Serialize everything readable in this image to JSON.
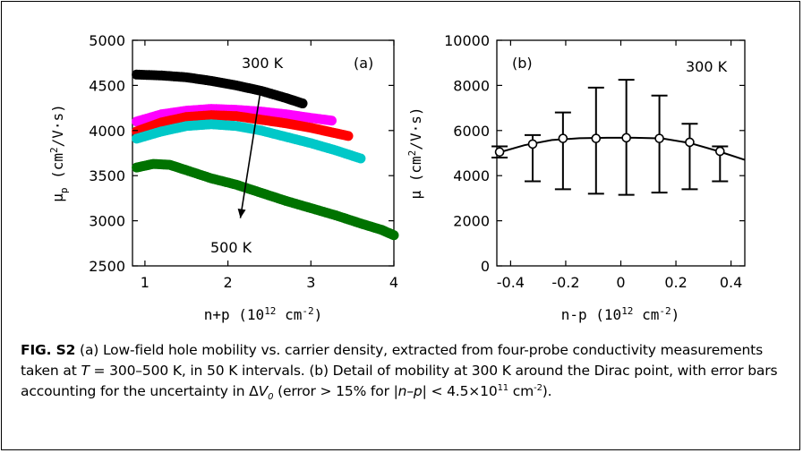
{
  "chart_data": [
    {
      "panel": "(a)",
      "type": "scatter",
      "xlabel": "n+p (10",
      "xlabel_exp": "12",
      "xlabel_unit": " cm",
      "xlabel_unit_exp": "-2",
      "xlabel_close": ")",
      "ylabel_mu": "μ",
      "ylabel_sub": "p",
      "ylabel_unit": " (cm",
      "ylabel_unit_exp": "2",
      "ylabel_tail": "/V·s)",
      "xlim": [
        0.85,
        4.0
      ],
      "ylim": [
        2500,
        5000
      ],
      "xticks": [
        "1",
        "2",
        "3",
        "4"
      ],
      "yticks": [
        "2500",
        "3000",
        "3500",
        "4000",
        "4500",
        "5000"
      ],
      "annotations": {
        "top": "300 K",
        "bottom": "500 K",
        "panel_label": "(a)"
      },
      "series": [
        {
          "temperature_K": 300,
          "color": "#000000",
          "x": [
            0.9,
            1.2,
            1.5,
            1.8,
            2.1,
            2.4,
            2.7,
            2.9
          ],
          "y": [
            4620,
            4610,
            4590,
            4550,
            4500,
            4440,
            4360,
            4300
          ]
        },
        {
          "temperature_K": 350,
          "color": "#ff00ff",
          "x": [
            0.9,
            1.2,
            1.5,
            1.8,
            2.1,
            2.4,
            2.7,
            3.0,
            3.25
          ],
          "y": [
            4100,
            4180,
            4220,
            4240,
            4230,
            4210,
            4180,
            4140,
            4110
          ]
        },
        {
          "temperature_K": 400,
          "color": "#ff0000",
          "x": [
            0.9,
            1.2,
            1.5,
            1.8,
            2.1,
            2.4,
            2.7,
            3.0,
            3.25,
            3.45
          ],
          "y": [
            3990,
            4090,
            4150,
            4170,
            4160,
            4120,
            4080,
            4030,
            3980,
            3940
          ]
        },
        {
          "temperature_K": 450,
          "color": "#00c8c8",
          "x": [
            0.9,
            1.2,
            1.5,
            1.8,
            2.1,
            2.4,
            2.7,
            3.0,
            3.3,
            3.6
          ],
          "y": [
            3910,
            3990,
            4050,
            4070,
            4050,
            4000,
            3930,
            3860,
            3780,
            3690
          ]
        },
        {
          "temperature_K": 500,
          "color": "#007300",
          "x": [
            0.9,
            1.1,
            1.3,
            1.5,
            1.8,
            2.1,
            2.4,
            2.7,
            3.0,
            3.3,
            3.6,
            3.85,
            4.0
          ],
          "y": [
            3590,
            3630,
            3620,
            3560,
            3470,
            3400,
            3310,
            3220,
            3140,
            3060,
            2970,
            2900,
            2840
          ]
        }
      ],
      "arrow": {
        "from": [
          2.4,
          4480
        ],
        "to": [
          2.15,
          3030
        ]
      }
    },
    {
      "panel": "(b)",
      "type": "scatter",
      "xlabel": "n-p (10",
      "xlabel_exp": "12",
      "xlabel_unit": " cm",
      "xlabel_unit_exp": "-2",
      "xlabel_close": ")",
      "ylabel_mu": "μ",
      "ylabel_unit": " (cm",
      "ylabel_unit_exp": "2",
      "ylabel_tail": "/V·s)",
      "xlim": [
        -0.45,
        0.45
      ],
      "ylim": [
        0,
        10000
      ],
      "xticks": [
        "-0.4",
        "-0.2",
        "0",
        "0.2",
        "0.4"
      ],
      "yticks": [
        "0",
        "2000",
        "4000",
        "6000",
        "8000",
        "10000"
      ],
      "annotations": {
        "panel_label": "(b)",
        "temperature": "300 K"
      },
      "points": [
        {
          "x": -0.44,
          "y": 5050,
          "err_lo": 4800,
          "err_hi": 5300
        },
        {
          "x": -0.32,
          "y": 5400,
          "err_lo": 3750,
          "err_hi": 5800
        },
        {
          "x": -0.21,
          "y": 5650,
          "err_lo": 3400,
          "err_hi": 6800
        },
        {
          "x": -0.09,
          "y": 5650,
          "err_lo": 3200,
          "err_hi": 7900
        },
        {
          "x": 0.02,
          "y": 5680,
          "err_lo": 3150,
          "err_hi": 8250
        },
        {
          "x": 0.14,
          "y": 5650,
          "err_lo": 3250,
          "err_hi": 7550
        },
        {
          "x": 0.25,
          "y": 5480,
          "err_lo": 3400,
          "err_hi": 6300
        },
        {
          "x": 0.36,
          "y": 5080,
          "err_lo": 3750,
          "err_hi": 5300
        }
      ],
      "fit_curve": {
        "x": [
          -0.45,
          -0.35,
          -0.25,
          -0.15,
          -0.05,
          0.05,
          0.15,
          0.25,
          0.35,
          0.45
        ],
        "y": [
          5000,
          5350,
          5580,
          5660,
          5680,
          5680,
          5650,
          5450,
          5100,
          4700
        ]
      }
    }
  ],
  "caption": {
    "lead": "FIG. S2",
    "part_a": " (a) Low-field hole mobility vs. carrier density, extracted from four-probe conductivity measurements taken at ",
    "t_symbol": "T",
    "part_b": " = 300–500 K, in 50 K intervals. (b) Detail of mobility at 300 K around the Dirac point, with error bars accounting for the uncertainty in Δ",
    "v_symbol": "V",
    "v_sub": "0",
    "part_c": " (error > 15% for |",
    "np_symbol": "n–p",
    "part_d": "| < 4.5×10",
    "exp": "11",
    "part_e": " cm",
    "exp2": "-2",
    "part_f": ")."
  }
}
